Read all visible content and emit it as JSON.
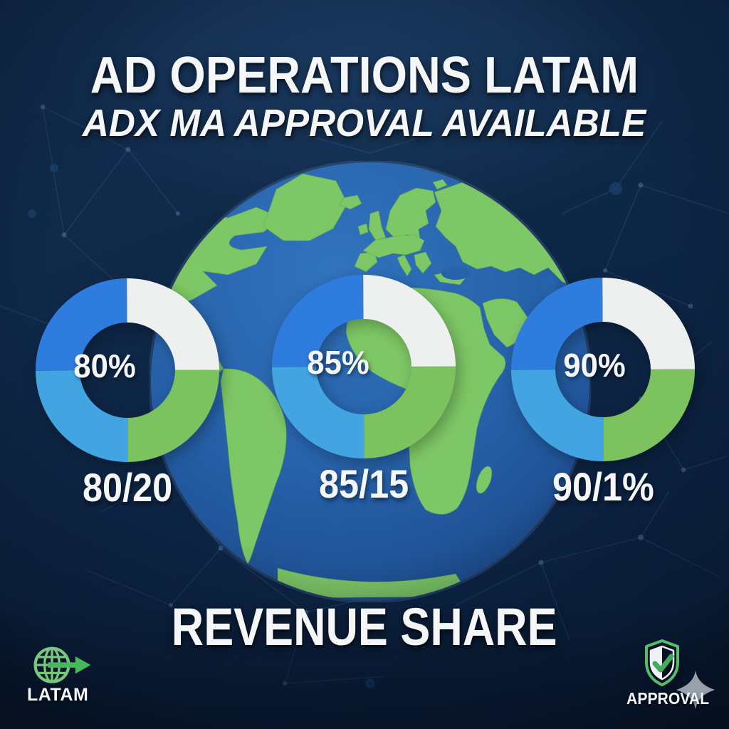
{
  "header": {
    "title": "AD OPERATIONS LATAM",
    "subtitle": "ADX MA APPROVAL AVAILABLE"
  },
  "section_heading": "REVENUE SHARE",
  "chart_data": [
    {
      "type": "pie",
      "subtype": "donut",
      "center_label": "80%",
      "caption": "80/20",
      "ratio_values": [
        80,
        20
      ],
      "legend": "none",
      "display_segments": [
        {
          "color": "ring_white",
          "value": 25
        },
        {
          "color": "ring_green",
          "value": 25
        },
        {
          "color": "ring_light_blue",
          "value": 25
        },
        {
          "color": "ring_blue",
          "value": 25
        }
      ]
    },
    {
      "type": "pie",
      "subtype": "donut",
      "center_label": "85%",
      "caption": "85/15",
      "ratio_values": [
        85,
        15
      ],
      "legend": "none",
      "display_segments": [
        {
          "color": "ring_white",
          "value": 25
        },
        {
          "color": "ring_green",
          "value": 25
        },
        {
          "color": "ring_light_blue",
          "value": 25
        },
        {
          "color": "ring_blue",
          "value": 25
        }
      ]
    },
    {
      "type": "pie",
      "subtype": "donut",
      "center_label": "90%",
      "caption": "90/1%",
      "ratio_values": [
        90,
        1
      ],
      "legend": "none",
      "display_segments": [
        {
          "color": "ring_white",
          "value": 25
        },
        {
          "color": "ring_green",
          "value": 25
        },
        {
          "color": "ring_light_blue",
          "value": 25
        },
        {
          "color": "ring_blue",
          "value": 25
        }
      ]
    }
  ],
  "badges": {
    "left": {
      "icon": "globe-arrow-icon",
      "label": "LATAM"
    },
    "right": {
      "icon": "shield-check-icon",
      "label": "APPROVAL"
    }
  },
  "colors": {
    "background_navy": "#0c2342",
    "ring_blue": "#2e7cdd",
    "ring_light_blue": "#42a5e2",
    "ring_green": "#7cc35f",
    "ring_white": "#edf0ee",
    "ocean_blue": "#2763ab",
    "land_green": "#7ec766",
    "heading_white": "#f4f6f8",
    "icon_globe_green": "#77c77d",
    "icon_arrow_green": "#45b95b",
    "shield_green": "#56bd6c",
    "sparkle_gray": "#98a1a9",
    "network_blue": "#7fa9d9"
  }
}
